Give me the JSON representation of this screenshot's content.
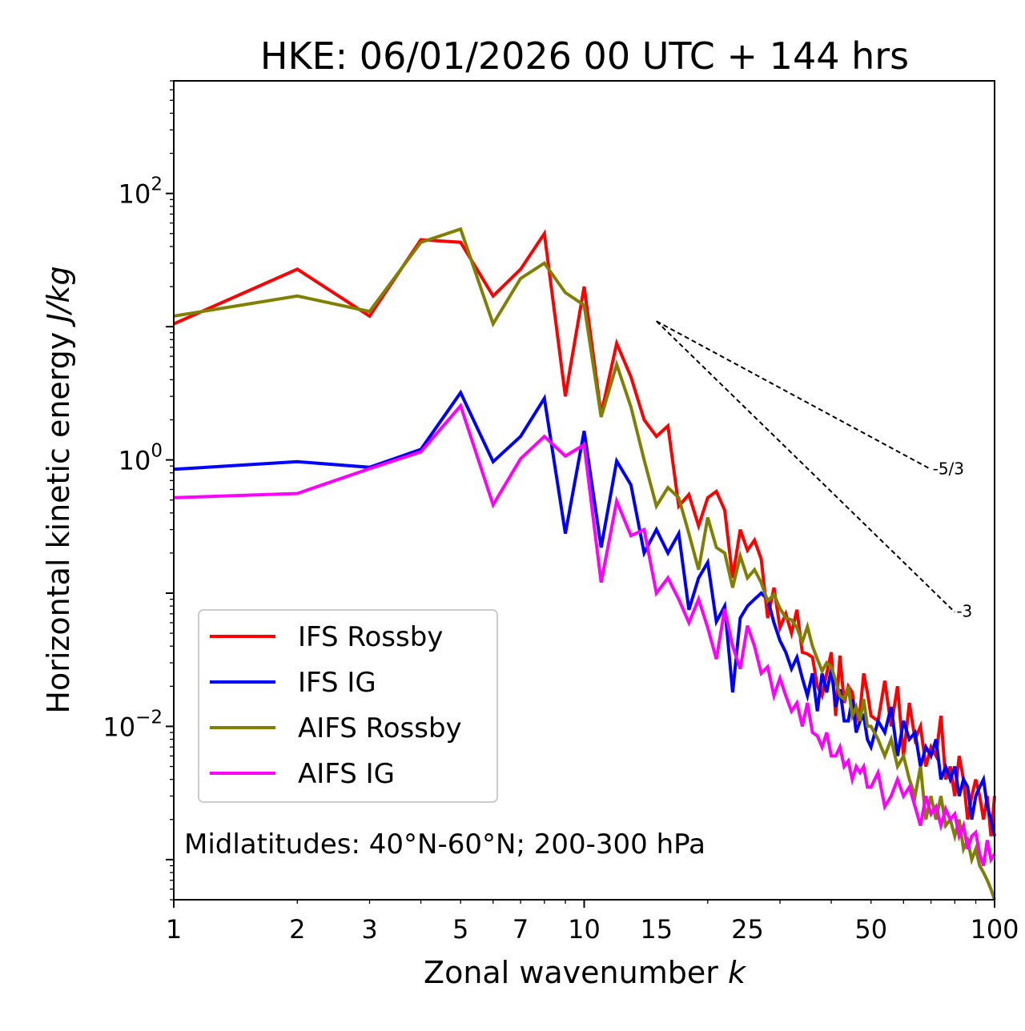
{
  "chart_data": {
    "type": "line",
    "title": "HKE: 06/01/2026 00 UTC + 144 hrs",
    "xlabel": "Zonal wavenumber",
    "xlabel_var": "k",
    "ylabel": "Horizontal kinetic energy",
    "ylabel_unit": "J/kg",
    "xscale": "log",
    "yscale": "log",
    "xlim": [
      1,
      100
    ],
    "ylim": [
      0.0005,
      700
    ],
    "x_ticks": [
      {
        "value": 1,
        "label": "1"
      },
      {
        "value": 2,
        "label": "2"
      },
      {
        "value": 3,
        "label": "3"
      },
      {
        "value": 5,
        "label": "5"
      },
      {
        "value": 7,
        "label": "7"
      },
      {
        "value": 10,
        "label": "10"
      },
      {
        "value": 15,
        "label": "15"
      },
      {
        "value": 25,
        "label": "25"
      },
      {
        "value": 50,
        "label": "50"
      },
      {
        "value": 100,
        "label": "100"
      }
    ],
    "y_ticks": [
      {
        "value": 100,
        "base": "10",
        "exp": "2"
      },
      {
        "value": 1,
        "base": "10",
        "exp": "0"
      },
      {
        "value": 0.01,
        "base": "10",
        "exp": "−2"
      }
    ],
    "legend_position": "lower-left",
    "annotation": "Midlatitudes: 40°N-60°N; 200-300 hPa",
    "reference_slopes": [
      {
        "label": "-5/3",
        "x0": 15,
        "y0": 11.0,
        "x1": 70,
        "y1": 0.85
      },
      {
        "label": "-3",
        "x0": 15,
        "y0": 11.0,
        "x1": 80,
        "y1": 0.072
      }
    ],
    "series": [
      {
        "name": "IFS Rossby",
        "color": "#ff0000",
        "x": [
          1,
          2,
          3,
          4,
          5,
          6,
          7,
          8,
          9,
          10,
          11,
          12,
          13,
          14,
          15,
          16,
          17,
          18,
          19,
          20,
          21,
          22,
          23,
          24,
          25,
          26,
          27,
          28,
          29,
          30,
          31,
          32,
          33,
          34,
          35,
          36,
          37,
          38,
          39,
          40,
          41,
          42,
          43,
          44,
          45,
          46,
          47,
          48,
          49,
          50,
          52,
          54,
          56,
          58,
          60,
          62,
          64,
          66,
          68,
          70,
          72,
          74,
          76,
          78,
          80,
          82,
          84,
          86,
          88,
          90,
          92,
          94,
          96,
          98,
          100
        ],
        "values": [
          10.5,
          27,
          12,
          45,
          43,
          17,
          27,
          50,
          3.0,
          20,
          2.2,
          7.5,
          4.2,
          2.0,
          1.5,
          1.8,
          0.45,
          0.55,
          0.32,
          0.52,
          0.58,
          0.42,
          0.13,
          0.3,
          0.21,
          0.25,
          0.18,
          0.065,
          0.11,
          0.055,
          0.07,
          0.05,
          0.075,
          0.036,
          0.035,
          0.033,
          0.02,
          0.017,
          0.025,
          0.036,
          0.012,
          0.034,
          0.015,
          0.02,
          0.018,
          0.011,
          0.013,
          0.025,
          0.018,
          0.012,
          0.011,
          0.022,
          0.01,
          0.02,
          0.006,
          0.015,
          0.008,
          0.01,
          0.005,
          0.007,
          0.006,
          0.012,
          0.004,
          0.005,
          0.003,
          0.006,
          0.004,
          0.002,
          0.003,
          0.004,
          0.003,
          0.002,
          0.003,
          0.0015,
          0.003
        ]
      },
      {
        "name": "IFS IG",
        "color": "#0000ff",
        "x": [
          1,
          2,
          3,
          4,
          5,
          6,
          7,
          8,
          9,
          10,
          11,
          12,
          13,
          14,
          15,
          16,
          17,
          18,
          19,
          20,
          21,
          22,
          23,
          24,
          25,
          26,
          27,
          28,
          29,
          30,
          31,
          32,
          33,
          34,
          35,
          36,
          37,
          38,
          39,
          40,
          41,
          42,
          43,
          44,
          45,
          46,
          47,
          48,
          49,
          50,
          52,
          54,
          56,
          58,
          60,
          62,
          64,
          66,
          68,
          70,
          72,
          74,
          76,
          78,
          80,
          82,
          84,
          86,
          88,
          90,
          92,
          94,
          96,
          98,
          100
        ],
        "values": [
          0.85,
          0.97,
          0.88,
          1.2,
          3.2,
          0.97,
          1.5,
          2.9,
          0.28,
          1.65,
          0.22,
          0.98,
          0.65,
          0.2,
          0.3,
          0.2,
          0.28,
          0.075,
          0.13,
          0.17,
          0.061,
          0.08,
          0.018,
          0.065,
          0.08,
          0.09,
          0.1,
          0.09,
          0.06,
          0.044,
          0.036,
          0.027,
          0.033,
          0.023,
          0.017,
          0.025,
          0.013,
          0.025,
          0.018,
          0.027,
          0.014,
          0.019,
          0.011,
          0.011,
          0.016,
          0.009,
          0.011,
          0.012,
          0.008,
          0.007,
          0.011,
          0.009,
          0.014,
          0.006,
          0.011,
          0.008,
          0.009,
          0.005,
          0.007,
          0.006,
          0.008,
          0.004,
          0.005,
          0.004,
          0.005,
          0.003,
          0.004,
          0.0035,
          0.002,
          0.003,
          0.0035,
          0.004,
          0.0025,
          0.002,
          0.0015
        ]
      },
      {
        "name": "AIFS Rossby",
        "color": "#808000",
        "x": [
          1,
          2,
          3,
          4,
          5,
          6,
          7,
          8,
          9,
          10,
          11,
          12,
          13,
          14,
          15,
          16,
          17,
          18,
          19,
          20,
          21,
          22,
          23,
          24,
          25,
          26,
          27,
          28,
          29,
          30,
          31,
          32,
          33,
          34,
          35,
          36,
          37,
          38,
          39,
          40,
          41,
          42,
          43,
          44,
          45,
          46,
          47,
          48,
          49,
          50,
          52,
          54,
          56,
          58,
          60,
          62,
          64,
          66,
          68,
          70,
          72,
          74,
          76,
          78,
          80,
          82,
          84,
          86,
          88,
          90,
          92,
          94,
          96,
          98,
          100
        ],
        "values": [
          12,
          17,
          13,
          43,
          54,
          10.5,
          23,
          30,
          18,
          14.5,
          2.1,
          5.2,
          2.5,
          1.0,
          0.45,
          0.62,
          0.52,
          0.28,
          0.15,
          0.37,
          0.22,
          0.2,
          0.11,
          0.19,
          0.13,
          0.15,
          0.12,
          0.087,
          0.098,
          0.077,
          0.065,
          0.063,
          0.055,
          0.043,
          0.056,
          0.04,
          0.032,
          0.026,
          0.03,
          0.028,
          0.022,
          0.017,
          0.016,
          0.02,
          0.012,
          0.014,
          0.011,
          0.016,
          0.01,
          0.01,
          0.008,
          0.006,
          0.008,
          0.005,
          0.006,
          0.004,
          0.003,
          0.005,
          0.002,
          0.003,
          0.002,
          0.003,
          0.0018,
          0.002,
          0.0015,
          0.002,
          0.0012,
          0.0014,
          0.001,
          0.0012,
          0.0009,
          0.0008,
          0.0007,
          0.0006,
          0.0005
        ]
      },
      {
        "name": "AIFS IG",
        "color": "#ff00ff",
        "x": [
          1,
          2,
          3,
          4,
          5,
          6,
          7,
          8,
          9,
          10,
          11,
          12,
          13,
          14,
          15,
          16,
          17,
          18,
          19,
          20,
          21,
          22,
          23,
          24,
          25,
          26,
          27,
          28,
          29,
          30,
          31,
          32,
          33,
          34,
          35,
          36,
          37,
          38,
          39,
          40,
          41,
          42,
          43,
          44,
          45,
          46,
          47,
          48,
          49,
          50,
          52,
          54,
          56,
          58,
          60,
          62,
          64,
          66,
          68,
          70,
          72,
          74,
          76,
          78,
          80,
          82,
          84,
          86,
          88,
          90,
          92,
          94,
          96,
          98,
          100
        ],
        "values": [
          0.52,
          0.56,
          0.86,
          1.15,
          2.55,
          0.46,
          1.02,
          1.5,
          1.07,
          1.3,
          0.12,
          0.49,
          0.27,
          0.3,
          0.1,
          0.13,
          0.09,
          0.06,
          0.09,
          0.055,
          0.032,
          0.076,
          0.04,
          0.027,
          0.057,
          0.04,
          0.025,
          0.028,
          0.017,
          0.023,
          0.017,
          0.013,
          0.015,
          0.01,
          0.015,
          0.009,
          0.0085,
          0.007,
          0.009,
          0.006,
          0.006,
          0.007,
          0.005,
          0.0055,
          0.004,
          0.005,
          0.0045,
          0.005,
          0.0035,
          0.0035,
          0.0045,
          0.0025,
          0.003,
          0.004,
          0.003,
          0.0035,
          0.0025,
          0.0018,
          0.003,
          0.0022,
          0.0025,
          0.0018,
          0.0024,
          0.002,
          0.0022,
          0.0015,
          0.0018,
          0.0012,
          0.0015,
          0.0016,
          0.0011,
          0.0009,
          0.0014,
          0.001,
          0.0011
        ]
      }
    ]
  }
}
